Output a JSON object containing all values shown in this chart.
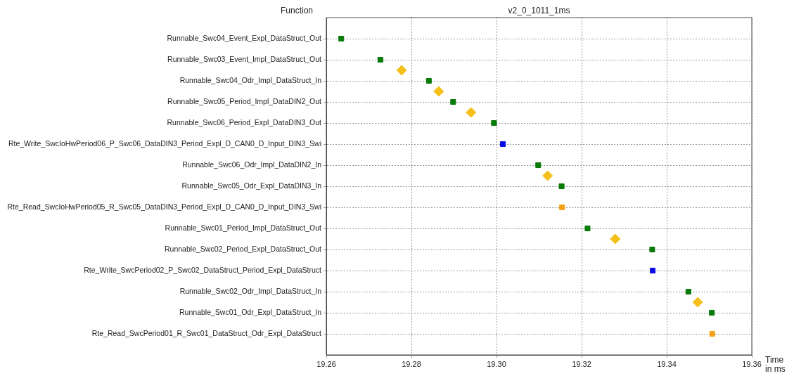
{
  "chart_data": {
    "type": "scatter",
    "title": "v2_0_1011_1ms",
    "ylabel": "Function",
    "xlabel": "Time in ms",
    "orientation": "horizontal",
    "categories": [
      "Runnable_Swc04_Event_Expl_DataStruct_Out",
      "Runnable_Swc03_Event_Impl_DataStruct_Out",
      "Runnable_Swc04_Odr_Impl_DataStruct_In",
      "Runnable_Swc05_Period_Impl_DataDIN2_Out",
      "Runnable_Swc06_Period_Expl_DataDIN3_Out",
      "Rte_Write_SwcIoHwPeriod06_P_Swc06_DataDIN3_Period_Expl_D_CAN0_D_Input_DIN3_Swi",
      "Runnable_Swc06_Odr_Impl_DataDIN2_In",
      "Runnable_Swc05_Odr_Expl_DataDIN3_In",
      "Rte_Read_SwcIoHwPeriod05_R_Swc05_DataDIN3_Period_Expl_D_CAN0_D_Input_DIN3_Swi",
      "Runnable_Swc01_Period_Impl_DataStruct_Out",
      "Runnable_Swc02_Period_Expl_DataStruct_Out",
      "Rte_Write_SwcPeriod02_P_Swc02_DataStruct_Period_Expl_DataStruct",
      "Runnable_Swc02_Odr_Impl_DataStruct_In",
      "Runnable_Swc01_Odr_Expl_DataStruct_In",
      "Rte_Read_SwcPeriod01_R_Swc01_DataStruct_Odr_Expl_DataStruct"
    ],
    "series": [
      {
        "color": "#087a08",
        "marker": "square",
        "values": [
          19.2635,
          19.2727,
          19.2841,
          19.2898,
          19.2994,
          null,
          19.3098,
          19.3153,
          null,
          19.3214,
          19.3366,
          null,
          19.3451,
          19.3506,
          null
        ]
      },
      {
        "color": "#0a0ae6",
        "marker": "square",
        "values": [
          null,
          null,
          null,
          null,
          null,
          19.3015,
          null,
          null,
          null,
          null,
          null,
          19.3367,
          null,
          null,
          null
        ]
      },
      {
        "color": "#f5a21a",
        "marker": "square",
        "values": [
          null,
          null,
          null,
          null,
          null,
          null,
          null,
          null,
          19.3154,
          null,
          null,
          null,
          null,
          null,
          19.3507
        ]
      },
      {
        "color": "#f5c01a",
        "marker": "diamond",
        "values": [
          null,
          19.2777,
          19.2864,
          19.294,
          null,
          null,
          19.312,
          null,
          null,
          19.3279,
          null,
          null,
          19.3473,
          null,
          null
        ]
      }
    ],
    "xlim": [
      19.26,
      19.36
    ],
    "xticks": [
      19.26,
      19.28,
      {
        "value": 19.3,
        "label": "19.30"
      },
      19.32,
      19.34,
      19.36
    ],
    "grid": true,
    "legend": false
  }
}
